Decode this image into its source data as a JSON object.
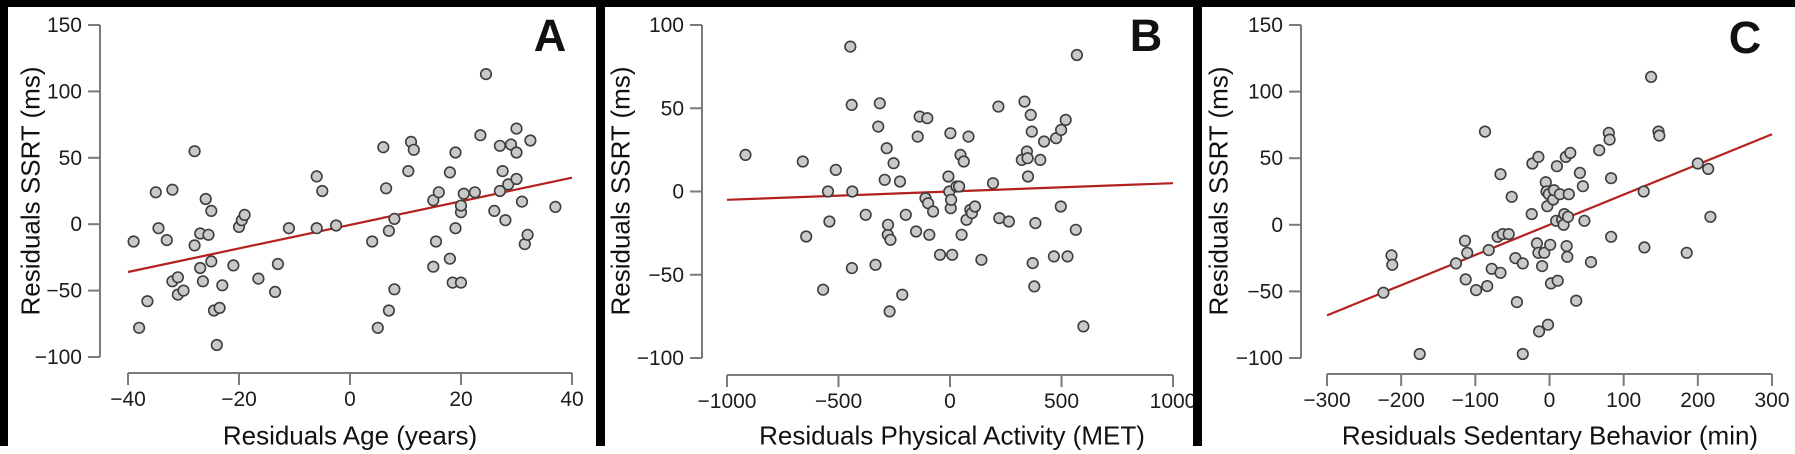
{
  "figure": {
    "description": "Three-panel residual scatter plots of SSRT",
    "panel_letters": [
      "A",
      "B",
      "C"
    ]
  },
  "style": {
    "point_fill": "#c9c9c9",
    "point_stroke": "#3d3d3d",
    "trend_line_color": "#b5211e",
    "axis_color": "#7a7a7a",
    "text_color": "#1d1d1d",
    "frame_color": "#000000",
    "background": "#ffffff"
  },
  "chart_data": [
    {
      "type": "scatter",
      "panel_label": "A",
      "xlabel": "Residuals Age (years)",
      "ylabel": "Residuals SSRT (ms)",
      "xlim": [
        -40,
        40
      ],
      "ylim": [
        -100,
        150
      ],
      "xticks": [
        -40,
        -20,
        0,
        20,
        40
      ],
      "yticks": [
        -100,
        -50,
        0,
        50,
        100,
        150
      ],
      "grid": false,
      "trend_line": {
        "x1": -40,
        "y1": -36,
        "x2": 40,
        "y2": 35
      },
      "points": [
        [
          -39,
          -13
        ],
        [
          -38,
          -78
        ],
        [
          -36.5,
          -58
        ],
        [
          -35,
          24
        ],
        [
          -34.5,
          -3
        ],
        [
          -33,
          -12
        ],
        [
          -32,
          26
        ],
        [
          -32,
          -43
        ],
        [
          -31,
          -53
        ],
        [
          -31,
          -40
        ],
        [
          -30,
          -50
        ],
        [
          -28,
          55
        ],
        [
          -28,
          -16
        ],
        [
          -27,
          -7
        ],
        [
          -27,
          -33
        ],
        [
          -26.5,
          -43
        ],
        [
          -26,
          19
        ],
        [
          -25.5,
          -8
        ],
        [
          -25,
          10
        ],
        [
          -25,
          -28
        ],
        [
          -24.5,
          -65
        ],
        [
          -24,
          -91
        ],
        [
          -23.5,
          -63
        ],
        [
          -23,
          -46
        ],
        [
          -21,
          -31
        ],
        [
          -20,
          -2
        ],
        [
          -19.5,
          3
        ],
        [
          -19,
          7
        ],
        [
          -16.5,
          -41
        ],
        [
          -13.5,
          -51
        ],
        [
          -13,
          -30
        ],
        [
          -11,
          -3
        ],
        [
          -6,
          36
        ],
        [
          -6,
          -3
        ],
        [
          -5,
          25
        ],
        [
          -2.5,
          -1
        ],
        [
          4,
          -13
        ],
        [
          5,
          -78
        ],
        [
          6,
          58
        ],
        [
          6.5,
          27
        ],
        [
          7,
          -65
        ],
        [
          7,
          -5
        ],
        [
          8,
          4
        ],
        [
          8,
          -49
        ],
        [
          10.5,
          40
        ],
        [
          11,
          62
        ],
        [
          11.5,
          56
        ],
        [
          15,
          18
        ],
        [
          15,
          -32
        ],
        [
          15.5,
          -13
        ],
        [
          16,
          24
        ],
        [
          18,
          -26
        ],
        [
          18,
          39
        ],
        [
          18.5,
          -44
        ],
        [
          19,
          -3
        ],
        [
          19,
          54
        ],
        [
          20,
          9
        ],
        [
          20,
          -44
        ],
        [
          20,
          14
        ],
        [
          20.5,
          23
        ],
        [
          22.5,
          24
        ],
        [
          23.5,
          67
        ],
        [
          24.5,
          113
        ],
        [
          26,
          10
        ],
        [
          27,
          25
        ],
        [
          27,
          59
        ],
        [
          27.5,
          40
        ],
        [
          28,
          3
        ],
        [
          28.5,
          30
        ],
        [
          29,
          60
        ],
        [
          30,
          72
        ],
        [
          30,
          54
        ],
        [
          30,
          34
        ],
        [
          31,
          17
        ],
        [
          31.5,
          -15
        ],
        [
          32,
          -8
        ],
        [
          32.5,
          63
        ],
        [
          37,
          13
        ]
      ]
    },
    {
      "type": "scatter",
      "panel_label": "B",
      "xlabel": "Residuals Physical Activity (MET)",
      "ylabel": "Residuals SSRT (ms)",
      "xlim": [
        -1000,
        1000
      ],
      "ylim": [
        -100,
        100
      ],
      "xticks": [
        -1000,
        -500,
        0,
        500,
        1000
      ],
      "yticks": [
        -100,
        -50,
        0,
        50,
        100
      ],
      "grid": false,
      "trend_line": {
        "x1": -1000,
        "y1": -5,
        "x2": 1000,
        "y2": 5
      },
      "points": [
        [
          -917,
          22
        ],
        [
          -660,
          18
        ],
        [
          -645,
          -27
        ],
        [
          -569,
          -59
        ],
        [
          -547,
          0
        ],
        [
          -541,
          -18
        ],
        [
          -512,
          13
        ],
        [
          -447,
          87
        ],
        [
          -441,
          52
        ],
        [
          -440,
          -46
        ],
        [
          -438,
          0
        ],
        [
          -378,
          -14
        ],
        [
          -334,
          -44
        ],
        [
          -322,
          39
        ],
        [
          -315,
          53
        ],
        [
          -293,
          7
        ],
        [
          -284,
          26
        ],
        [
          -279,
          -26
        ],
        [
          -278,
          -20
        ],
        [
          -271,
          -72
        ],
        [
          -267,
          -29
        ],
        [
          -253,
          17
        ],
        [
          -224,
          6
        ],
        [
          -214,
          -62
        ],
        [
          -198,
          -14
        ],
        [
          -152,
          -24
        ],
        [
          -145,
          33
        ],
        [
          -136,
          45
        ],
        [
          -110,
          -4
        ],
        [
          -102,
          44
        ],
        [
          -98,
          -7
        ],
        [
          -93,
          -26
        ],
        [
          -76,
          -12
        ],
        [
          -45,
          -38
        ],
        [
          -7,
          9
        ],
        [
          -3,
          0
        ],
        [
          2,
          35
        ],
        [
          3,
          -10
        ],
        [
          5,
          -5
        ],
        [
          10,
          -38
        ],
        [
          29,
          3
        ],
        [
          41,
          3
        ],
        [
          47,
          22
        ],
        [
          52,
          -26
        ],
        [
          62,
          18
        ],
        [
          74,
          -17
        ],
        [
          83,
          33
        ],
        [
          91,
          -11
        ],
        [
          98,
          -13
        ],
        [
          112,
          -9
        ],
        [
          141,
          -41
        ],
        [
          193,
          5
        ],
        [
          217,
          51
        ],
        [
          221,
          -16
        ],
        [
          264,
          -18
        ],
        [
          322,
          19
        ],
        [
          334,
          54
        ],
        [
          345,
          24
        ],
        [
          348,
          20
        ],
        [
          350,
          9
        ],
        [
          362,
          46
        ],
        [
          367,
          36
        ],
        [
          371,
          -43
        ],
        [
          378,
          -57
        ],
        [
          383,
          -19
        ],
        [
          405,
          19
        ],
        [
          422,
          30
        ],
        [
          466,
          -39
        ],
        [
          476,
          32
        ],
        [
          497,
          -9
        ],
        [
          498,
          37
        ],
        [
          519,
          43
        ],
        [
          527,
          -39
        ],
        [
          564,
          -23
        ],
        [
          569,
          82
        ],
        [
          598,
          -81
        ]
      ]
    },
    {
      "type": "scatter",
      "panel_label": "C",
      "xlabel": "Residuals Sedentary Behavior (min)",
      "ylabel": "Residuals SSRT (ms)",
      "xlim": [
        -300,
        300
      ],
      "ylim": [
        -100,
        150
      ],
      "xticks": [
        -300,
        -200,
        -100,
        0,
        100,
        200,
        300
      ],
      "yticks": [
        -100,
        -50,
        0,
        50,
        100,
        150
      ],
      "grid": false,
      "trend_line": {
        "x1": -300,
        "y1": -68,
        "x2": 300,
        "y2": 68
      },
      "points": [
        [
          -224,
          -51
        ],
        [
          -213,
          -23
        ],
        [
          -212,
          -30
        ],
        [
          -175,
          -97
        ],
        [
          -126,
          -29
        ],
        [
          -114,
          -12
        ],
        [
          -113,
          -41
        ],
        [
          -111,
          -21
        ],
        [
          -99,
          -49
        ],
        [
          -87,
          70
        ],
        [
          -84,
          -46
        ],
        [
          -82,
          -19
        ],
        [
          -78,
          -33
        ],
        [
          -70,
          -9
        ],
        [
          -66,
          38
        ],
        [
          -66,
          -36
        ],
        [
          -63,
          -7
        ],
        [
          -55,
          -7
        ],
        [
          -51,
          21
        ],
        [
          -46,
          -25
        ],
        [
          -44,
          -58
        ],
        [
          -36,
          -29
        ],
        [
          -36,
          -97
        ],
        [
          -24,
          8
        ],
        [
          -23,
          46
        ],
        [
          -17,
          -14
        ],
        [
          -15,
          51
        ],
        [
          -15,
          -21
        ],
        [
          -14,
          -80
        ],
        [
          -10,
          -31
        ],
        [
          -7,
          -21
        ],
        [
          -5,
          32
        ],
        [
          -4,
          25
        ],
        [
          -3,
          14
        ],
        [
          -2,
          -75
        ],
        [
          -1,
          23
        ],
        [
          1,
          -15
        ],
        [
          2,
          -44
        ],
        [
          5,
          19
        ],
        [
          6,
          26
        ],
        [
          9,
          3
        ],
        [
          10,
          44
        ],
        [
          11,
          -42
        ],
        [
          14,
          23
        ],
        [
          17,
          4
        ],
        [
          19,
          0
        ],
        [
          20,
          8
        ],
        [
          22,
          51
        ],
        [
          23,
          -16
        ],
        [
          24,
          -24
        ],
        [
          25,
          6
        ],
        [
          26,
          23
        ],
        [
          28,
          54
        ],
        [
          36,
          -57
        ],
        [
          41,
          39
        ],
        [
          45,
          29
        ],
        [
          47,
          3
        ],
        [
          56,
          -28
        ],
        [
          67,
          56
        ],
        [
          80,
          69
        ],
        [
          81,
          64
        ],
        [
          83,
          35
        ],
        [
          83,
          -9
        ],
        [
          127,
          25
        ],
        [
          128,
          -17
        ],
        [
          137,
          111
        ],
        [
          147,
          70
        ],
        [
          148,
          67
        ],
        [
          185,
          -21
        ],
        [
          200,
          46
        ],
        [
          214,
          42
        ],
        [
          217,
          6
        ]
      ]
    }
  ]
}
